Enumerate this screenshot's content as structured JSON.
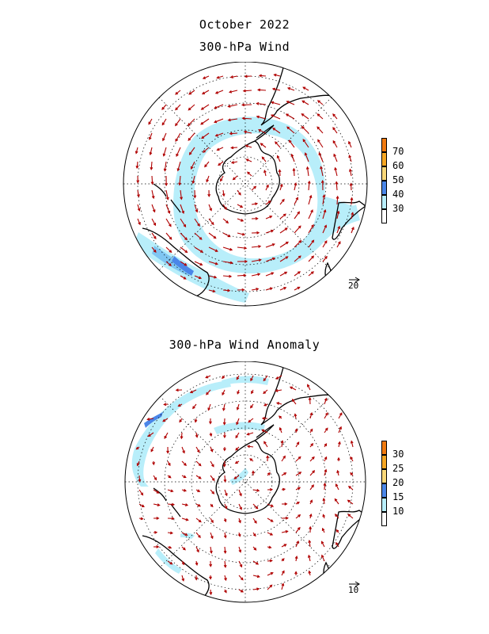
{
  "header": {
    "title_line1": "October 2022",
    "title_line2": "300-hPa Wind"
  },
  "panels": [
    {
      "id": "wind",
      "title": "",
      "colorbar": {
        "labels": [
          "30",
          "40",
          "50",
          "60",
          "70"
        ],
        "colors": [
          "#ffffff",
          "#b8eefa",
          "#4a86e8",
          "#f9d87a",
          "#f5a623",
          "#f07a10"
        ]
      },
      "reference_vector": "20"
    },
    {
      "id": "anomaly",
      "title": "300-hPa Wind Anomaly",
      "colorbar": {
        "labels": [
          "10",
          "15",
          "20",
          "25",
          "30"
        ],
        "colors": [
          "#ffffff",
          "#b8eefa",
          "#4a86e8",
          "#f9d87a",
          "#f5a623",
          "#f07a10"
        ]
      },
      "reference_vector": "10"
    }
  ],
  "colors": {
    "arrow": "#b00000",
    "coast": "#000000",
    "shade_light": "#b8eefa",
    "shade_mid": "#7fc6f2",
    "shade_dark": "#4a86e8"
  }
}
